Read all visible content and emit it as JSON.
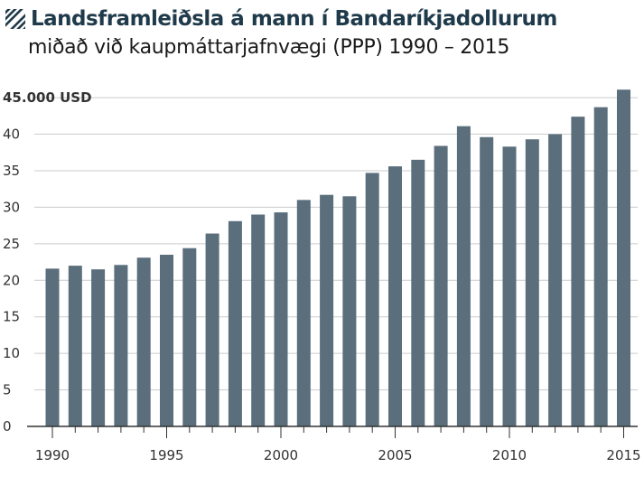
{
  "header": {
    "title": "Landsframleiðsla á mann í Bandaríkjadollurum",
    "subtitle": "miðað við kaupmáttarjafnvægi (PPP) 1990 – 2015",
    "icon": "hatch-icon"
  },
  "colors": {
    "bar": "#5a6e7b",
    "grid": "#cccccc",
    "axis": "#333333",
    "title": "#1f3a4a"
  },
  "chart_data": {
    "type": "bar",
    "title": "Landsframleiðsla á mann í Bandaríkjadollurum",
    "subtitle": "miðað við kaupmáttarjafnvægi (PPP) 1990 – 2015",
    "xlabel": "",
    "ylabel": "",
    "categories": [
      "1990",
      "1991",
      "1992",
      "1993",
      "1994",
      "1995",
      "1996",
      "1997",
      "1998",
      "1999",
      "2000",
      "2001",
      "2002",
      "2003",
      "2004",
      "2005",
      "2006",
      "2007",
      "2008",
      "2009",
      "2010",
      "2011",
      "2012",
      "2013",
      "2014",
      "2015"
    ],
    "values": [
      21.6,
      22.0,
      21.5,
      22.1,
      23.1,
      23.5,
      24.4,
      26.4,
      28.1,
      29.0,
      29.3,
      31.0,
      31.7,
      31.5,
      34.7,
      35.6,
      36.5,
      38.4,
      41.1,
      39.6,
      38.3,
      39.3,
      40.0,
      42.4,
      43.7,
      46.1
    ],
    "ylim": [
      0,
      46.5
    ],
    "yticks": [
      0,
      5,
      10,
      15,
      20,
      25,
      30,
      35,
      40,
      45
    ],
    "ytick_labels": [
      "0",
      "5",
      "10",
      "15",
      "20",
      "25",
      "30",
      "35",
      "40",
      "45.000 USD"
    ],
    "xtick_labels": [
      "1990",
      "1995",
      "2000",
      "2005",
      "2010",
      "2015"
    ],
    "grid": true,
    "legend": "none"
  }
}
